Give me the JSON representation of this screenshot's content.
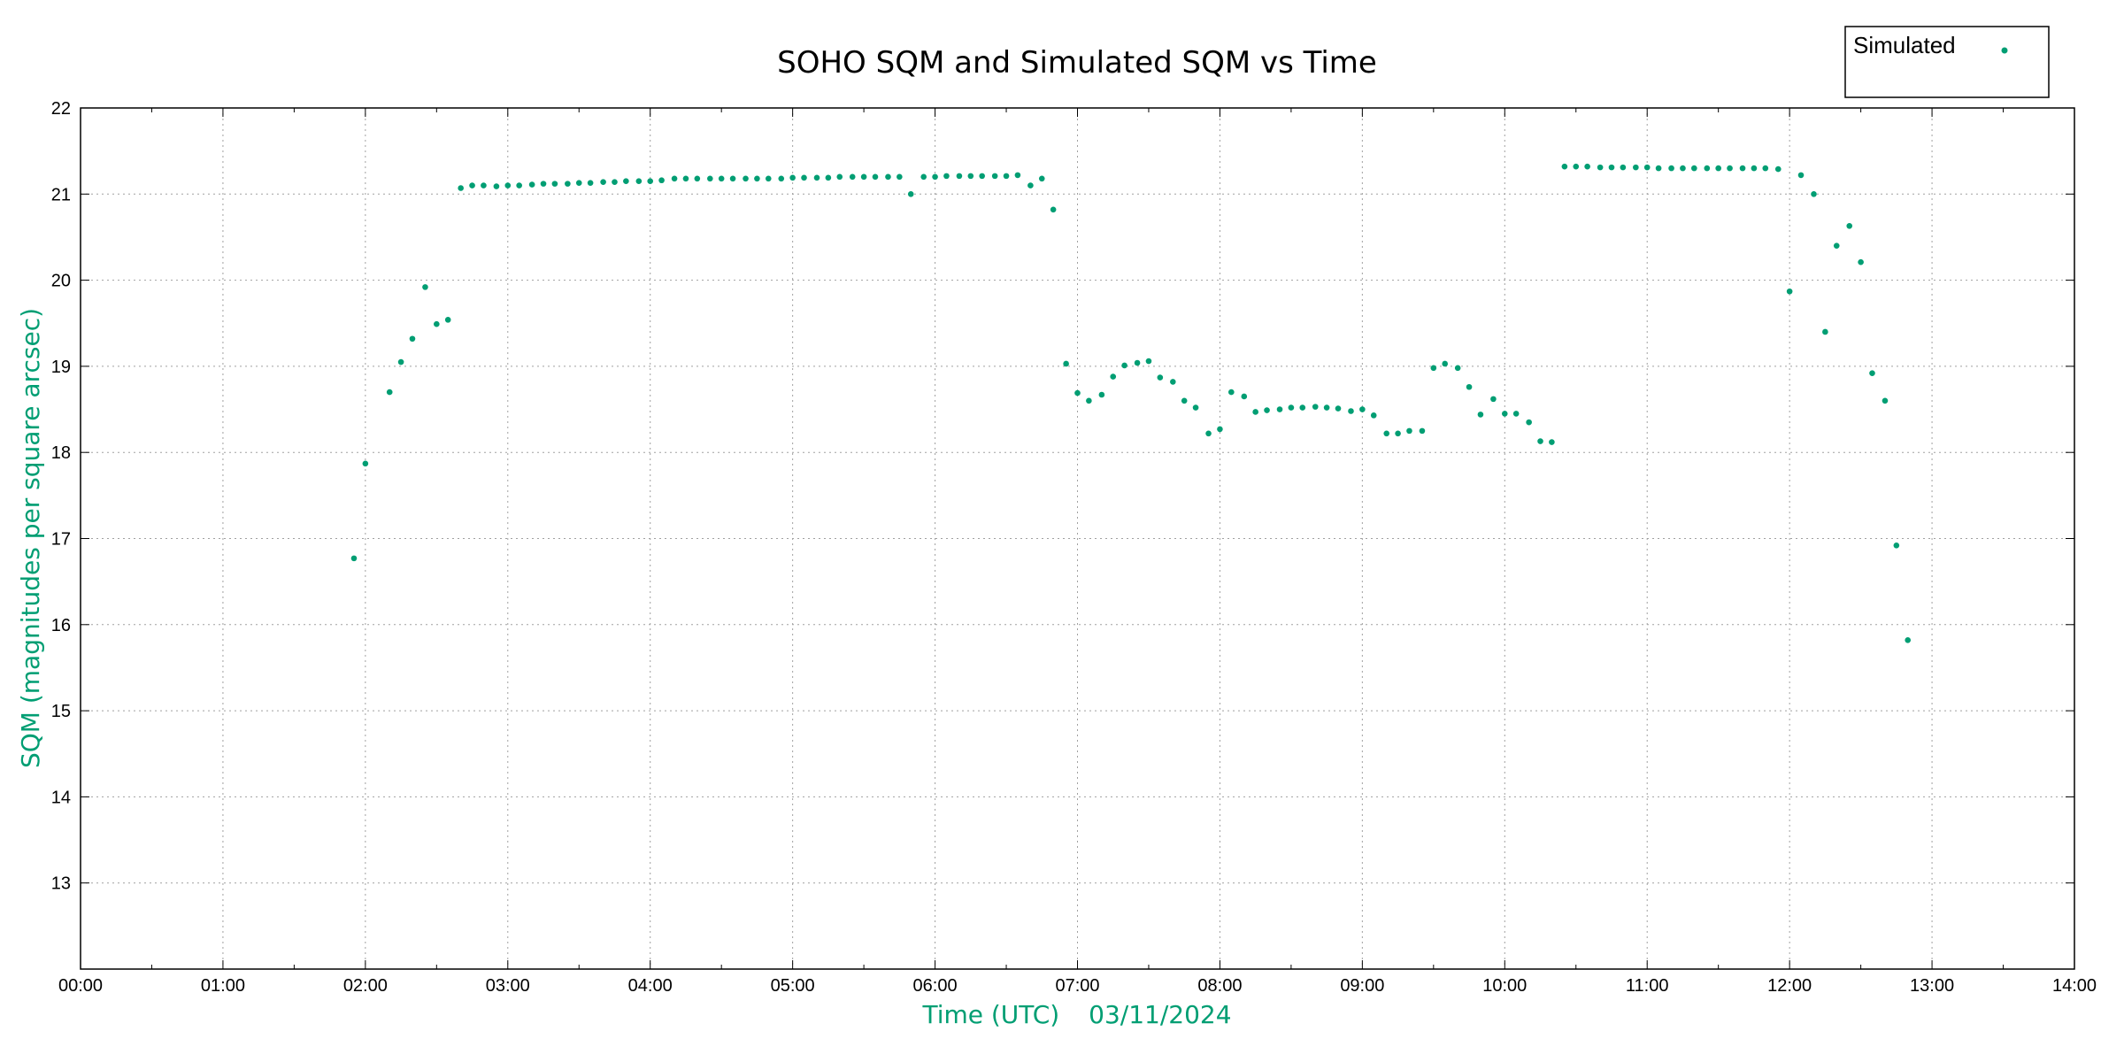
{
  "chart_data": {
    "type": "scatter",
    "title": "SOHO SQM and Simulated SQM vs Time",
    "xlabel": "Time (UTC)",
    "xlabel_date": "03/11/2024",
    "ylabel": "SQM (magnitudes per square arcsec)",
    "xlim": [
      0,
      14
    ],
    "ylim": [
      12,
      22
    ],
    "x_ticks": [
      {
        "v": 0,
        "label": "00:00"
      },
      {
        "v": 1,
        "label": "01:00"
      },
      {
        "v": 2,
        "label": "02:00"
      },
      {
        "v": 3,
        "label": "03:00"
      },
      {
        "v": 4,
        "label": "04:00"
      },
      {
        "v": 5,
        "label": "05:00"
      },
      {
        "v": 6,
        "label": "06:00"
      },
      {
        "v": 7,
        "label": "07:00"
      },
      {
        "v": 8,
        "label": "08:00"
      },
      {
        "v": 9,
        "label": "09:00"
      },
      {
        "v": 10,
        "label": "10:00"
      },
      {
        "v": 11,
        "label": "11:00"
      },
      {
        "v": 12,
        "label": "12:00"
      },
      {
        "v": 13,
        "label": "13:00"
      },
      {
        "v": 14,
        "label": "14:00"
      }
    ],
    "y_ticks": [
      {
        "v": 13,
        "label": "13"
      },
      {
        "v": 14,
        "label": "14"
      },
      {
        "v": 15,
        "label": "15"
      },
      {
        "v": 16,
        "label": "16"
      },
      {
        "v": 17,
        "label": "17"
      },
      {
        "v": 18,
        "label": "18"
      },
      {
        "v": 19,
        "label": "19"
      },
      {
        "v": 20,
        "label": "20"
      },
      {
        "v": 21,
        "label": "21"
      },
      {
        "v": 22,
        "label": "22"
      }
    ],
    "grid": true,
    "legend_position": "top-right",
    "series": [
      {
        "name": "Simulated",
        "color": "#009e73",
        "points": [
          [
            1.92,
            16.77
          ],
          [
            2.0,
            17.87
          ],
          [
            2.17,
            18.7
          ],
          [
            2.25,
            19.05
          ],
          [
            2.33,
            19.32
          ],
          [
            2.42,
            19.92
          ],
          [
            2.5,
            19.49
          ],
          [
            2.58,
            19.54
          ],
          [
            2.67,
            21.07
          ],
          [
            2.75,
            21.1
          ],
          [
            2.83,
            21.1
          ],
          [
            2.92,
            21.09
          ],
          [
            3.0,
            21.1
          ],
          [
            3.08,
            21.1
          ],
          [
            3.17,
            21.11
          ],
          [
            3.25,
            21.12
          ],
          [
            3.33,
            21.12
          ],
          [
            3.42,
            21.12
          ],
          [
            3.5,
            21.13
          ],
          [
            3.58,
            21.13
          ],
          [
            3.67,
            21.14
          ],
          [
            3.75,
            21.14
          ],
          [
            3.83,
            21.15
          ],
          [
            3.92,
            21.15
          ],
          [
            4.0,
            21.15
          ],
          [
            4.08,
            21.16
          ],
          [
            4.17,
            21.18
          ],
          [
            4.25,
            21.18
          ],
          [
            4.33,
            21.18
          ],
          [
            4.42,
            21.18
          ],
          [
            4.5,
            21.18
          ],
          [
            4.58,
            21.18
          ],
          [
            4.67,
            21.18
          ],
          [
            4.75,
            21.18
          ],
          [
            4.83,
            21.18
          ],
          [
            4.92,
            21.18
          ],
          [
            5.0,
            21.19
          ],
          [
            5.08,
            21.19
          ],
          [
            5.17,
            21.19
          ],
          [
            5.25,
            21.19
          ],
          [
            5.33,
            21.2
          ],
          [
            5.42,
            21.2
          ],
          [
            5.5,
            21.2
          ],
          [
            5.58,
            21.2
          ],
          [
            5.67,
            21.2
          ],
          [
            5.75,
            21.2
          ],
          [
            5.83,
            21.0
          ],
          [
            5.92,
            21.2
          ],
          [
            6.0,
            21.2
          ],
          [
            6.08,
            21.21
          ],
          [
            6.17,
            21.21
          ],
          [
            6.25,
            21.21
          ],
          [
            6.33,
            21.21
          ],
          [
            6.42,
            21.21
          ],
          [
            6.5,
            21.21
          ],
          [
            6.58,
            21.22
          ],
          [
            6.67,
            21.1
          ],
          [
            6.75,
            21.18
          ],
          [
            6.83,
            20.82
          ],
          [
            6.92,
            19.03
          ],
          [
            7.0,
            18.69
          ],
          [
            7.08,
            18.6
          ],
          [
            7.17,
            18.67
          ],
          [
            7.25,
            18.88
          ],
          [
            7.33,
            19.01
          ],
          [
            7.42,
            19.04
          ],
          [
            7.5,
            19.06
          ],
          [
            7.58,
            18.87
          ],
          [
            7.67,
            18.82
          ],
          [
            7.75,
            18.6
          ],
          [
            7.83,
            18.52
          ],
          [
            7.92,
            18.22
          ],
          [
            8.0,
            18.27
          ],
          [
            8.08,
            18.7
          ],
          [
            8.17,
            18.65
          ],
          [
            8.25,
            18.47
          ],
          [
            8.33,
            18.49
          ],
          [
            8.42,
            18.5
          ],
          [
            8.5,
            18.52
          ],
          [
            8.58,
            18.52
          ],
          [
            8.67,
            18.53
          ],
          [
            8.75,
            18.52
          ],
          [
            8.83,
            18.51
          ],
          [
            8.92,
            18.48
          ],
          [
            9.0,
            18.5
          ],
          [
            9.08,
            18.43
          ],
          [
            9.17,
            18.22
          ],
          [
            9.25,
            18.22
          ],
          [
            9.33,
            18.25
          ],
          [
            9.42,
            18.25
          ],
          [
            9.5,
            18.98
          ],
          [
            9.58,
            19.03
          ],
          [
            9.67,
            18.98
          ],
          [
            9.75,
            18.76
          ],
          [
            9.83,
            18.44
          ],
          [
            9.92,
            18.62
          ],
          [
            10.0,
            18.45
          ],
          [
            10.08,
            18.45
          ],
          [
            10.17,
            18.35
          ],
          [
            10.25,
            18.13
          ],
          [
            10.33,
            18.12
          ],
          [
            10.42,
            21.32
          ],
          [
            10.5,
            21.32
          ],
          [
            10.58,
            21.32
          ],
          [
            10.67,
            21.31
          ],
          [
            10.75,
            21.31
          ],
          [
            10.83,
            21.31
          ],
          [
            10.92,
            21.31
          ],
          [
            11.0,
            21.31
          ],
          [
            11.08,
            21.3
          ],
          [
            11.17,
            21.3
          ],
          [
            11.25,
            21.3
          ],
          [
            11.33,
            21.3
          ],
          [
            11.42,
            21.3
          ],
          [
            11.5,
            21.3
          ],
          [
            11.58,
            21.3
          ],
          [
            11.67,
            21.3
          ],
          [
            11.75,
            21.3
          ],
          [
            11.83,
            21.3
          ],
          [
            11.92,
            21.29
          ],
          [
            12.0,
            19.87
          ],
          [
            12.08,
            21.22
          ],
          [
            12.17,
            21.0
          ],
          [
            12.25,
            19.4
          ],
          [
            12.33,
            20.4
          ],
          [
            12.42,
            20.63
          ],
          [
            12.5,
            20.21
          ],
          [
            12.58,
            18.92
          ],
          [
            12.67,
            18.6
          ],
          [
            12.75,
            16.92
          ],
          [
            12.83,
            15.82
          ]
        ]
      }
    ]
  }
}
